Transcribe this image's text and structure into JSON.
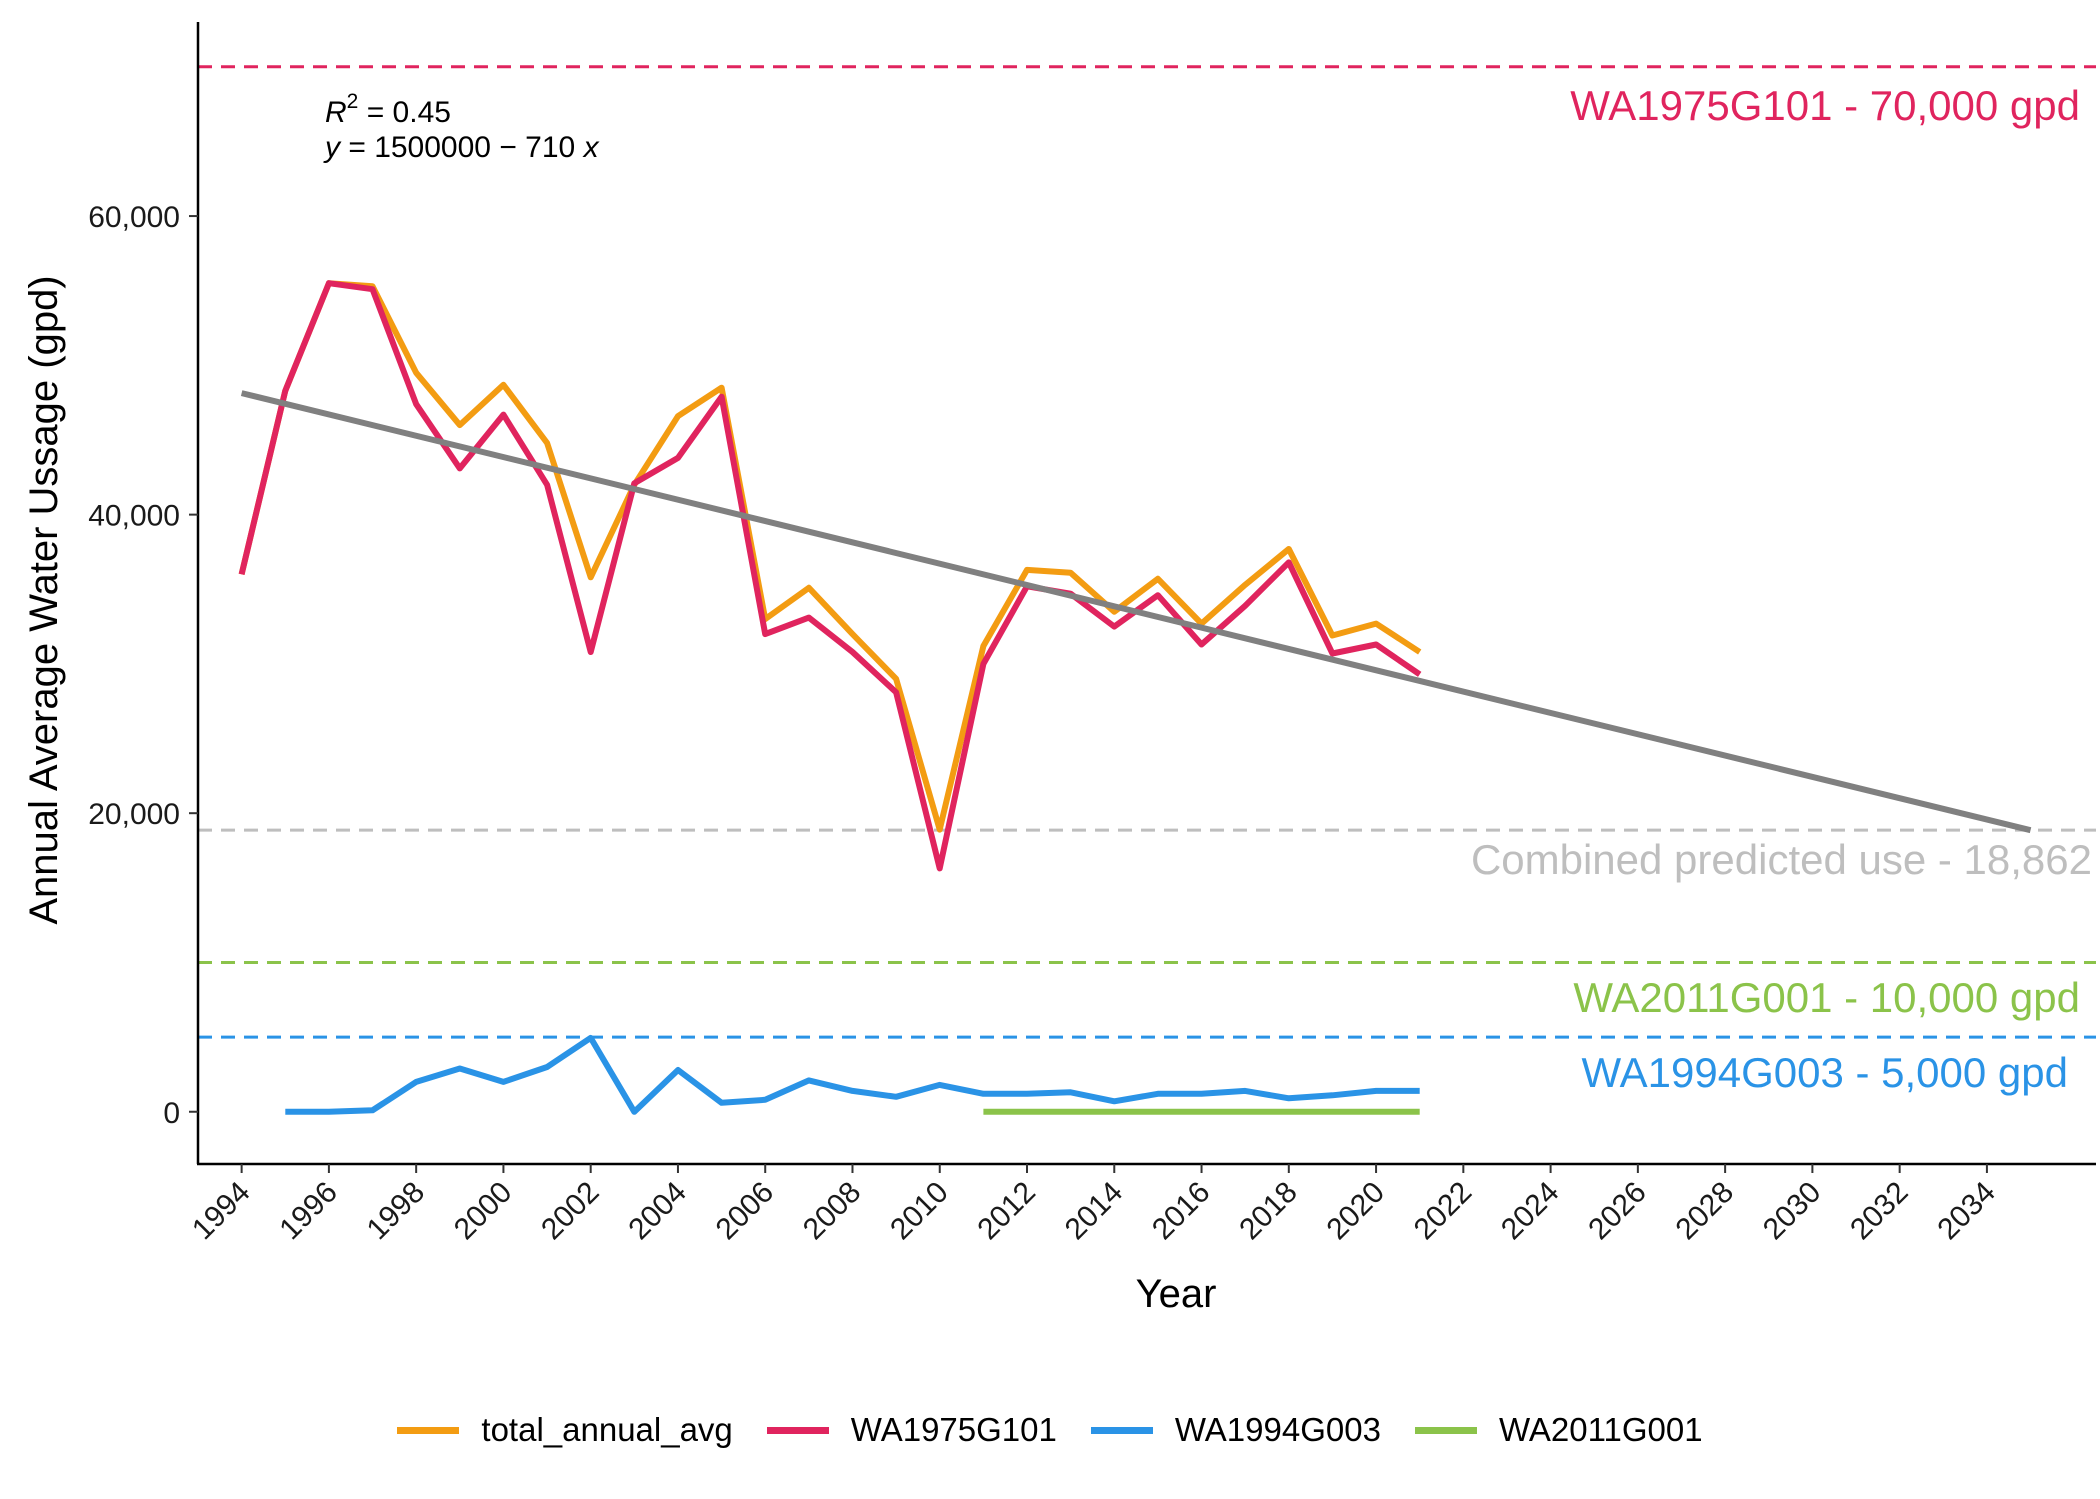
{
  "chart_data": {
    "type": "line",
    "xlabel": "Year",
    "ylabel": "Annual Average Water Ussage (gpd)",
    "xlim": [
      1993,
      2036.5
    ],
    "ylim": [
      -3500,
      73000
    ],
    "x_ticks": [
      1994,
      1996,
      1998,
      2000,
      2002,
      2004,
      2006,
      2008,
      2010,
      2012,
      2014,
      2016,
      2018,
      2020,
      2022,
      2024,
      2026,
      2028,
      2030,
      2032,
      2034
    ],
    "y_ticks": [
      0,
      20000,
      40000,
      60000
    ],
    "y_tick_labels": [
      "0",
      "20,000",
      "40,000",
      "60,000"
    ],
    "grid": false,
    "legend_position": "bottom",
    "series": [
      {
        "name": "total_annual_avg",
        "color": "#F39C12",
        "x": [
          1994,
          1995,
          1996,
          1997,
          1998,
          1999,
          2000,
          2001,
          2002,
          2003,
          2004,
          2005,
          2006,
          2007,
          2008,
          2009,
          2010,
          2011,
          2012,
          2013,
          2014,
          2015,
          2016,
          2017,
          2018,
          2019,
          2020,
          2021
        ],
        "y": [
          36000,
          48300,
          55500,
          55300,
          49500,
          46000,
          48700,
          44800,
          35800,
          42000,
          46600,
          48500,
          33000,
          35100,
          32000,
          29000,
          18900,
          31200,
          36300,
          36100,
          33500,
          35700,
          32700,
          35300,
          37700,
          31900,
          32700,
          30800
        ]
      },
      {
        "name": "WA1975G101",
        "color": "#E0245E",
        "x": [
          1994,
          1995,
          1996,
          1997,
          1998,
          1999,
          2000,
          2001,
          2002,
          2003,
          2004,
          2005,
          2006,
          2007,
          2008,
          2009,
          2010,
          2011,
          2012,
          2013,
          2014,
          2015,
          2016,
          2017,
          2018,
          2019,
          2020,
          2021
        ],
        "y": [
          36000,
          48300,
          55500,
          55100,
          47400,
          43100,
          46700,
          42000,
          30800,
          42100,
          43800,
          47900,
          32000,
          33100,
          30800,
          28100,
          16300,
          30000,
          35200,
          34700,
          32500,
          34600,
          31300,
          33900,
          36800,
          30700,
          31300,
          29300
        ]
      },
      {
        "name": "WA1994G003",
        "color": "#2A93E6",
        "x": [
          1995,
          1996,
          1997,
          1998,
          1999,
          2000,
          2001,
          2002,
          2003,
          2004,
          2005,
          2006,
          2007,
          2008,
          2009,
          2010,
          2011,
          2012,
          2013,
          2014,
          2015,
          2016,
          2017,
          2018,
          2019,
          2020,
          2021
        ],
        "y": [
          0,
          0,
          100,
          2000,
          2900,
          2000,
          3000,
          4950,
          0,
          2800,
          600,
          800,
          2100,
          1400,
          1000,
          1800,
          1200,
          1200,
          1300,
          700,
          1200,
          1200,
          1400,
          900,
          1100,
          1400,
          1400
        ]
      },
      {
        "name": "WA2011G001",
        "color": "#8BC34A",
        "x": [
          2011,
          2021
        ],
        "y": [
          0,
          0
        ]
      }
    ],
    "trend_line": {
      "color": "#808080",
      "x": [
        1994,
        2035
      ],
      "y": [
        48140,
        18862
      ]
    },
    "reference_lines": [
      {
        "y": 70000,
        "label": "WA1975G101 - 70,000 gpd",
        "color": "#E0245E"
      },
      {
        "y": 18862,
        "label": "Combined predicted use - 18,862",
        "color": "#BEBEBE"
      },
      {
        "y": 10000,
        "label": "WA2011G001 - 10,000 gpd",
        "color": "#8BC34A"
      },
      {
        "y": 5000,
        "label": "WA1994G003 - 5,000 gpd",
        "color": "#2A93E6"
      }
    ],
    "annotation": {
      "r2_label": "R",
      "r2_sup": "2",
      "r2_value": " = 0.45",
      "eq_y": "y",
      "eq_mid": " = 1500000 − 710 ",
      "eq_x": "x"
    }
  }
}
